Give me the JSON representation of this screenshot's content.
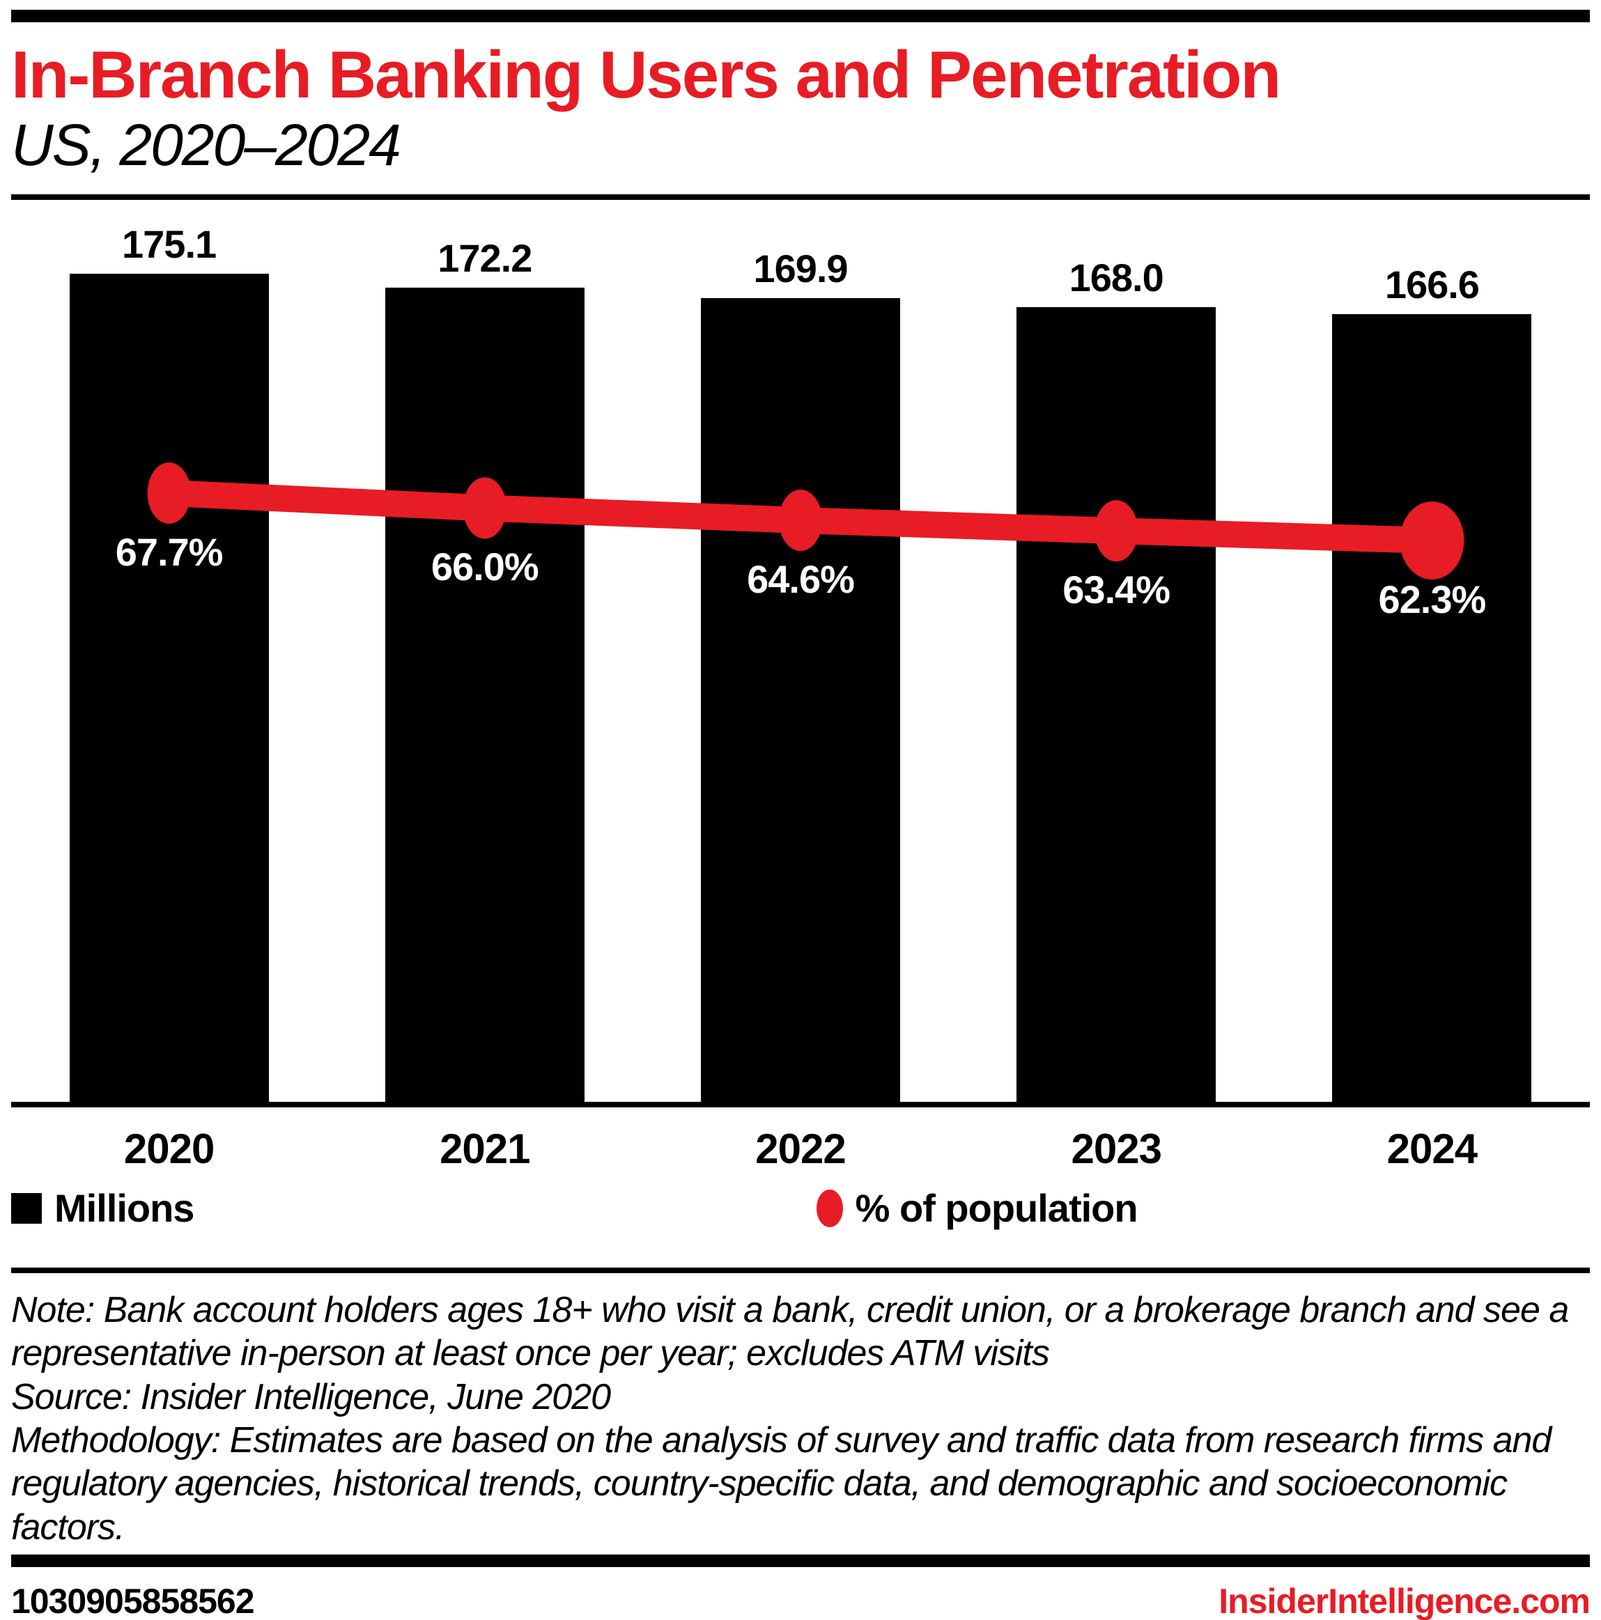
{
  "colors": {
    "accent_red": "#e81c24",
    "bar_black": "#000000",
    "pct_label_white": "#ffffff"
  },
  "chart_data": {
    "type": "bar-line-combo",
    "title": "In-Branch Banking Users and Penetration",
    "subtitle": "US, 2020–2024",
    "categories": [
      "2020",
      "2021",
      "2022",
      "2023",
      "2024"
    ],
    "series": [
      {
        "name": "Millions",
        "type": "bar",
        "color": "#000000",
        "values": [
          175.1,
          172.2,
          169.9,
          168.0,
          166.6
        ],
        "labels": [
          "175.1",
          "172.2",
          "169.9",
          "168.0",
          "166.6"
        ]
      },
      {
        "name": "% of population",
        "type": "line",
        "color": "#e81c24",
        "values": [
          67.7,
          66.0,
          64.6,
          63.4,
          62.3
        ],
        "labels": [
          "67.7%",
          "66.0%",
          "64.6%",
          "63.4%",
          "62.3%"
        ]
      }
    ],
    "bars_from_zero": true,
    "bar_ylim": [
      0,
      175.1
    ],
    "grid": false,
    "legend_position": "bottom"
  },
  "notes": {
    "note": "Note: Bank account holders ages 18+ who visit a bank, credit union, or a brokerage branch and see a representative in-person at least once per year; excludes ATM visits",
    "source": "Source: Insider Intelligence, June 2020",
    "methodology": "Methodology: Estimates are based on the analysis of survey and traffic data from research firms and regulatory agencies, historical trends, country-specific data, and demographic and socioeconomic factors."
  },
  "footer": {
    "chart_id": "1030905858562",
    "website": "InsiderIntelligence.com"
  }
}
